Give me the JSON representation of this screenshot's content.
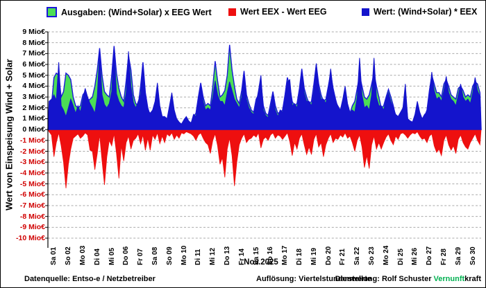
{
  "legend": {
    "items": [
      {
        "label": "Ausgaben: (Wind+Solar) x EEG Wert",
        "swatch": "green-square-blue-border"
      },
      {
        "label": "Wert EEX - Wert EEG",
        "swatch": "red-square"
      },
      {
        "label": "Wert: (Wind+Solar) * EEX",
        "swatch": "blue-square"
      }
    ]
  },
  "y_axis": {
    "title": "Wert von Einspeisung Wind + Solar",
    "unit": "Mio€",
    "max": 9,
    "min": -10,
    "tick_step": 1
  },
  "x_axis": {
    "month_label": "Nov.2025"
  },
  "footer": {
    "left": "Datenquelle:  Entso-e  / Netzbetreiber",
    "center": "Auflösung: Viertelstundenwerte",
    "right_prefix": "Darstellung:  Rolf Schuster  ",
    "brand_green": "Vernunft",
    "brand_black": "kraft"
  },
  "colors": {
    "eeg_fill": "#4cde55",
    "eeg_border": "#1a17d9",
    "eex_fill": "#1414cc",
    "diff_fill": "#ee0f0f",
    "grid": "#a9a9a9",
    "axis": "#000000",
    "neg_tick_label": "#d00000",
    "brand_green": "#00b050"
  },
  "chart_data": {
    "type": "area",
    "title_yaxis": "Wert von Einspeisung Wind + Solar",
    "month_label": "Nov.2025",
    "ylim": [
      -10,
      9
    ],
    "ytick_step": 1,
    "y_unit": "Mio€",
    "grid": "horizontal-dashed",
    "legend_position": "top",
    "samples_per_day": 6,
    "series_meta": [
      {
        "name": "Ausgaben: (Wind+Solar) x EEG Wert",
        "key": "eeg",
        "type": "area-behind"
      },
      {
        "name": "Wert EEX - Wert EEG",
        "key": "diff",
        "type": "area-negative"
      },
      {
        "name": "Wert: (Wind+Solar) * EEX",
        "key": "eex",
        "type": "area-front"
      }
    ],
    "days": [
      {
        "label": "Sa 01",
        "eeg": [
          2.0,
          2.3,
          4.8,
          5.2,
          5.0,
          3.0
        ],
        "eex": [
          2.6,
          2.8,
          3.2,
          2.7,
          6.2,
          2.2
        ],
        "diff": [
          -0.2,
          -0.5,
          -2.5,
          -1.2,
          -0.3,
          -1.5
        ]
      },
      {
        "label": "So 02",
        "eeg": [
          3.5,
          5.2,
          5.0,
          4.6,
          3.0,
          2.2
        ],
        "eex": [
          1.8,
          1.2,
          2.0,
          2.8,
          2.2,
          1.5
        ],
        "diff": [
          -3.0,
          -5.4,
          -3.2,
          -1.8,
          -0.8,
          -0.6
        ]
      },
      {
        "label": "Mo 03",
        "eeg": [
          2.0,
          2.2,
          3.2,
          3.5,
          2.6,
          2.8
        ],
        "eex": [
          2.2,
          1.6,
          2.8,
          3.8,
          3.0,
          2.4
        ],
        "diff": [
          -0.4,
          -0.8,
          -0.6,
          -0.3,
          -0.5,
          -1.9
        ]
      },
      {
        "label": "Di 04",
        "eeg": [
          3.0,
          4.0,
          5.5,
          7.5,
          5.0,
          3.5
        ],
        "eex": [
          2.0,
          1.5,
          3.0,
          7.3,
          3.2,
          2.3
        ],
        "diff": [
          -2.0,
          -3.7,
          -2.2,
          -0.5,
          -2.9,
          -5.1
        ]
      },
      {
        "label": "Mi 05",
        "eeg": [
          3.2,
          3.0,
          5.0,
          7.7,
          5.2,
          3.8
        ],
        "eex": [
          2.0,
          2.4,
          3.5,
          7.6,
          3.3,
          2.6
        ],
        "diff": [
          -2.5,
          -1.0,
          -1.5,
          -0.4,
          -2.2,
          -4.5
        ]
      },
      {
        "label": "Do 06",
        "eeg": [
          3.0,
          2.6,
          4.5,
          6.8,
          5.5,
          3.2
        ],
        "eex": [
          2.2,
          2.0,
          3.4,
          7.2,
          4.0,
          2.5
        ],
        "diff": [
          -1.5,
          -2.9,
          -1.2,
          -0.6,
          -1.8,
          -1.0
        ]
      },
      {
        "label": "Fr 07",
        "eeg": [
          2.4,
          2.2,
          4.0,
          6.2,
          3.4,
          2.0
        ],
        "eex": [
          2.0,
          2.6,
          3.2,
          5.8,
          3.0,
          1.8
        ],
        "diff": [
          -0.8,
          -0.4,
          -1.3,
          -0.5,
          -1.9,
          -0.8
        ]
      },
      {
        "label": "Sa 08",
        "eeg": [
          1.3,
          1.5,
          2.2,
          3.6,
          2.0,
          1.1
        ],
        "eex": [
          1.5,
          1.8,
          2.6,
          4.3,
          2.2,
          1.2
        ],
        "diff": [
          -1.9,
          -0.5,
          -0.9,
          -0.3,
          -1.3,
          -0.6
        ]
      },
      {
        "label": "So 09",
        "eeg": [
          1.0,
          0.9,
          1.8,
          2.8,
          1.5,
          0.9
        ],
        "eex": [
          1.2,
          1.0,
          2.2,
          3.4,
          1.8,
          1.0
        ],
        "diff": [
          -1.2,
          -0.4,
          -0.6,
          -0.3,
          -0.9,
          -0.5
        ]
      },
      {
        "label": "Mo 10",
        "eeg": [
          0.6,
          0.5,
          0.8,
          1.0,
          0.7,
          0.6
        ],
        "eex": [
          0.7,
          0.5,
          0.9,
          1.2,
          0.8,
          0.6
        ],
        "diff": [
          -0.8,
          -0.3,
          -0.4,
          -0.2,
          -0.3,
          -0.4
        ]
      },
      {
        "label": "Di 11",
        "eeg": [
          1.2,
          1.5,
          3.0,
          4.3,
          3.0,
          2.2
        ],
        "eex": [
          1.4,
          1.2,
          2.6,
          4.1,
          2.6,
          1.8
        ],
        "diff": [
          -0.6,
          -1.0,
          -0.5,
          -0.3,
          -0.8,
          -1.2
        ]
      },
      {
        "label": "Mi 12",
        "eeg": [
          2.4,
          2.2,
          4.0,
          6.3,
          4.5,
          3.0
        ],
        "eex": [
          2.0,
          1.8,
          3.0,
          4.5,
          3.2,
          2.6
        ],
        "diff": [
          -1.4,
          -2.2,
          -1.0,
          -0.4,
          -1.5,
          -3.2
        ]
      },
      {
        "label": "Do 13",
        "eeg": [
          3.2,
          3.6,
          5.0,
          7.8,
          5.5,
          4.0
        ],
        "eex": [
          2.6,
          2.2,
          3.4,
          4.4,
          3.6,
          2.8
        ],
        "diff": [
          -2.6,
          -4.4,
          -1.8,
          -0.8,
          -2.4,
          -5.2
        ]
      },
      {
        "label": "Fr 14",
        "eeg": [
          2.8,
          2.4,
          3.6,
          5.4,
          3.2,
          2.4
        ],
        "eex": [
          2.4,
          2.0,
          3.0,
          5.0,
          2.8,
          2.0
        ],
        "diff": [
          -3.0,
          -1.4,
          -0.8,
          -0.4,
          -1.2,
          -0.9
        ]
      },
      {
        "label": "Sa 15",
        "eeg": [
          1.8,
          1.6,
          2.8,
          3.2,
          4.4,
          2.2
        ],
        "eex": [
          1.6,
          1.4,
          2.4,
          3.6,
          5.0,
          1.8
        ],
        "diff": [
          -0.8,
          -0.5,
          -0.7,
          -0.3,
          -1.7,
          -0.9
        ]
      },
      {
        "label": "So 16",
        "eeg": [
          1.5,
          1.3,
          2.4,
          3.5,
          2.2,
          1.5
        ],
        "eex": [
          1.3,
          1.1,
          2.0,
          3.2,
          1.8,
          1.2
        ],
        "diff": [
          -0.7,
          -1.0,
          -0.5,
          -0.3,
          -0.8,
          -0.5
        ]
      },
      {
        "label": "Mo 17",
        "eeg": [
          1.6,
          1.8,
          3.2,
          4.8,
          4.0,
          2.6
        ],
        "eex": [
          1.8,
          1.6,
          2.8,
          4.4,
          4.6,
          2.2
        ],
        "diff": [
          -0.6,
          -0.9,
          -0.6,
          -0.3,
          -1.1,
          -2.4
        ]
      },
      {
        "label": "Di 18",
        "eeg": [
          2.2,
          2.4,
          3.8,
          5.6,
          3.8,
          3.0
        ],
        "eex": [
          2.4,
          2.0,
          3.4,
          5.3,
          3.4,
          2.6
        ],
        "diff": [
          -1.2,
          -1.8,
          -0.8,
          -0.4,
          -1.4,
          -2.3
        ]
      },
      {
        "label": "Mi 19",
        "eeg": [
          2.4,
          2.6,
          4.2,
          6.0,
          4.2,
          3.2
        ],
        "eex": [
          2.6,
          2.2,
          3.6,
          6.1,
          3.8,
          2.8
        ],
        "diff": [
          -1.6,
          -2.3,
          -0.9,
          -0.4,
          -1.6,
          -1.2
        ]
      },
      {
        "label": "Do 20",
        "eeg": [
          2.6,
          2.8,
          4.0,
          5.2,
          3.8,
          2.8
        ],
        "eex": [
          2.8,
          2.4,
          3.8,
          5.6,
          3.6,
          2.6
        ],
        "diff": [
          -2.5,
          -1.4,
          -0.8,
          -0.4,
          -1.2,
          -0.8
        ]
      },
      {
        "label": "Fr 21",
        "eeg": [
          2.0,
          1.6,
          2.4,
          3.6,
          2.2,
          1.5
        ],
        "eex": [
          2.2,
          1.8,
          2.8,
          4.0,
          2.4,
          1.6
        ],
        "diff": [
          -0.9,
          -0.5,
          -0.7,
          -0.3,
          -0.8,
          -0.6
        ]
      },
      {
        "label": "Sa 22",
        "eeg": [
          2.2,
          2.6,
          3.8,
          5.0,
          4.0,
          3.0
        ],
        "eex": [
          1.8,
          1.6,
          3.0,
          6.6,
          3.2,
          2.0
        ],
        "diff": [
          -1.2,
          -2.0,
          -1.0,
          -0.5,
          -1.6,
          -3.5
        ]
      },
      {
        "label": "So 23",
        "eeg": [
          2.8,
          3.2,
          4.2,
          5.2,
          4.0,
          3.0
        ],
        "eex": [
          2.2,
          1.8,
          3.2,
          6.6,
          3.0,
          2.2
        ],
        "diff": [
          -2.4,
          -3.6,
          -1.4,
          -0.6,
          -1.8,
          -1.2
        ]
      },
      {
        "label": "Mo 24",
        "eeg": [
          2.0,
          2.2,
          3.0,
          3.7,
          3.0,
          2.2
        ],
        "eex": [
          2.2,
          1.8,
          2.8,
          3.4,
          2.6,
          2.0
        ],
        "diff": [
          -1.8,
          -1.2,
          -0.7,
          -0.4,
          -1.0,
          -1.4
        ]
      },
      {
        "label": "Di 25",
        "eeg": [
          1.2,
          1.0,
          1.4,
          1.7,
          3.4,
          0.9
        ],
        "eex": [
          1.4,
          1.2,
          1.6,
          2.0,
          4.2,
          1.0
        ],
        "diff": [
          -0.6,
          -0.9,
          -0.4,
          -0.3,
          -0.5,
          -0.8
        ]
      },
      {
        "label": "Mi 26",
        "eeg": [
          0.7,
          0.6,
          1.2,
          2.2,
          1.4,
          0.9
        ],
        "eex": [
          0.8,
          0.7,
          1.4,
          2.6,
          1.6,
          1.0
        ],
        "diff": [
          -0.5,
          -0.3,
          -0.4,
          -0.2,
          -0.6,
          -0.9
        ]
      },
      {
        "label": "Do 27",
        "eeg": [
          1.2,
          1.8,
          3.6,
          5.0,
          4.2,
          3.4
        ],
        "eex": [
          1.4,
          1.6,
          3.2,
          5.3,
          3.6,
          2.8
        ],
        "diff": [
          -0.8,
          -1.2,
          -0.6,
          -0.4,
          -1.5,
          -2.1
        ]
      },
      {
        "label": "Fr 28",
        "eeg": [
          3.4,
          3.0,
          4.2,
          4.6,
          4.0,
          3.2
        ],
        "eex": [
          3.0,
          2.6,
          3.6,
          4.9,
          3.4,
          2.8
        ],
        "diff": [
          -1.8,
          -2.4,
          -1.0,
          -0.5,
          -1.4,
          -1.9
        ]
      },
      {
        "label": "Sa 29",
        "eeg": [
          3.0,
          2.8,
          3.8,
          4.0,
          3.6,
          3.0
        ],
        "eex": [
          2.6,
          2.2,
          3.2,
          4.2,
          3.0,
          2.6
        ],
        "diff": [
          -1.5,
          -2.2,
          -0.9,
          -0.5,
          -1.2,
          -1.6
        ]
      },
      {
        "label": "So 30",
        "eeg": [
          3.2,
          3.0,
          4.0,
          4.4,
          4.2,
          3.4
        ],
        "eex": [
          2.8,
          2.4,
          3.4,
          4.8,
          3.6,
          3.0
        ],
        "diff": [
          -1.8,
          -1.2,
          -0.8,
          -0.4,
          -1.0,
          -1.4
        ]
      }
    ]
  }
}
